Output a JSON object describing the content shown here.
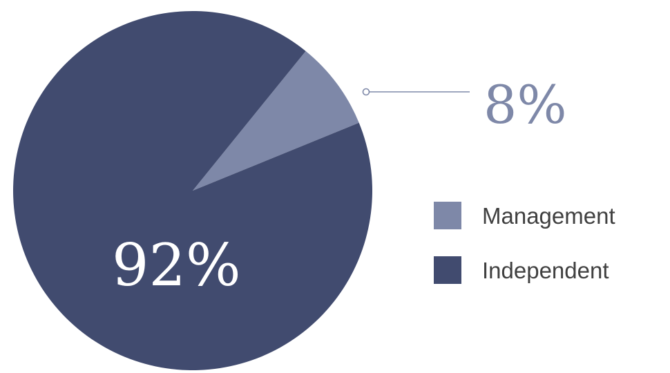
{
  "chart_data": {
    "type": "pie",
    "title": "",
    "slices": [
      {
        "name": "Management",
        "value": 8,
        "label": "8%",
        "color": "#7e88a8"
      },
      {
        "name": "Independent",
        "value": 92,
        "label": "92%",
        "color": "#414b6f"
      }
    ],
    "legend": {
      "position": "right",
      "items": [
        {
          "name": "Management",
          "color": "#7e88a8"
        },
        {
          "name": "Independent",
          "color": "#414b6f"
        }
      ]
    }
  }
}
